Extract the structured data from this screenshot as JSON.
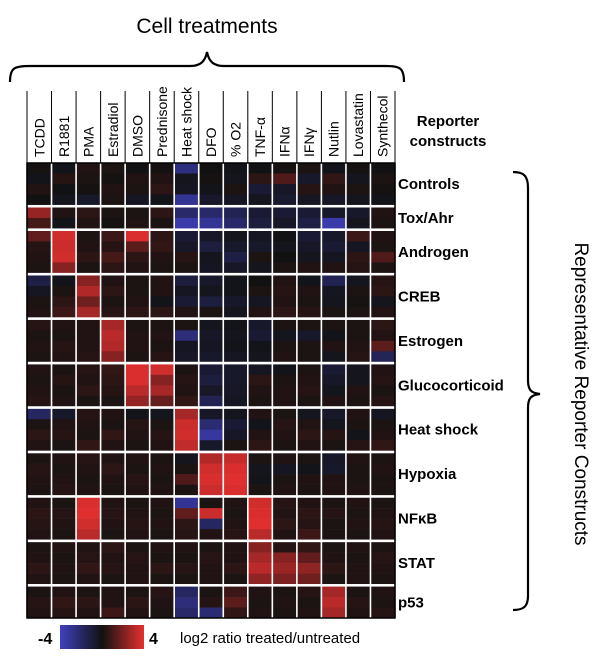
{
  "chart_data": {
    "type": "heatmap",
    "title": "Cell treatments",
    "column_header": "Cell treatments",
    "row_header": [
      "Reporter",
      "constructs"
    ],
    "side_label": "Representative Reporter Constructs",
    "columns": [
      "TCDD",
      "R1881",
      "PMA",
      "Estradiol",
      "DMSO",
      "Prednisone",
      "Heat shock",
      "DFO",
      "% O2",
      "TNF-α",
      "IFNα",
      "IFNγ",
      "Nutlin",
      "Lovastatin",
      "Synthecol"
    ],
    "groups": [
      {
        "name": "Controls",
        "rows": 4
      },
      {
        "name": "Tox/Ahr",
        "rows": 2
      },
      {
        "name": "Androgen",
        "rows": 4
      },
      {
        "name": "CREB",
        "rows": 4
      },
      {
        "name": "Estrogen",
        "rows": 4
      },
      {
        "name": "Glucocorticoid",
        "rows": 4
      },
      {
        "name": "Heat shock",
        "rows": 4
      },
      {
        "name": "Hypoxia",
        "rows": 4
      },
      {
        "name": "NFκB",
        "rows": 4
      },
      {
        "name": "STAT",
        "rows": 4
      },
      {
        "name": "p53",
        "rows": 3
      }
    ],
    "values": [
      [
        0.1,
        -0.2,
        0.3,
        0.2,
        -0.1,
        0.1,
        -2.5,
        0.0,
        -0.2,
        -0.1,
        0.1,
        0.2,
        -0.2,
        0.1,
        -0.1
      ],
      [
        -0.2,
        0.4,
        0.2,
        0.1,
        0.3,
        0.3,
        -0.3,
        0.1,
        -0.3,
        0.5,
        1.2,
        -0.6,
        0.6,
        -0.3,
        0.2
      ],
      [
        0.3,
        -0.1,
        0.1,
        0.3,
        0.2,
        0.5,
        -0.4,
        -0.2,
        0.2,
        -0.8,
        -0.5,
        0.4,
        0.3,
        0.2,
        0.1
      ],
      [
        0.0,
        -0.3,
        -0.6,
        0.2,
        -0.4,
        -0.2,
        -3.0,
        -0.6,
        -0.4,
        -0.3,
        -0.7,
        -0.4,
        -0.5,
        -0.3,
        -0.2
      ],
      [
        2.5,
        0.3,
        0.5,
        0.2,
        0.2,
        0.5,
        -2.0,
        -2.0,
        -1.5,
        -0.8,
        -0.8,
        -0.8,
        -0.6,
        -0.6,
        0.3
      ],
      [
        1.0,
        -0.2,
        0.3,
        0.1,
        0.3,
        0.2,
        -3.5,
        -3.0,
        -2.0,
        -1.0,
        -0.5,
        -1.2,
        -3.5,
        -0.3,
        0.2
      ],
      [
        1.5,
        3.6,
        0.2,
        0.8,
        3.8,
        0.5,
        -0.8,
        -0.5,
        -0.3,
        -0.4,
        -0.1,
        -0.8,
        -0.6,
        0.8,
        0.3
      ],
      [
        0.4,
        3.5,
        0.3,
        0.4,
        1.4,
        0.6,
        -0.5,
        -1.0,
        -0.6,
        -0.6,
        -0.3,
        -0.5,
        -0.8,
        -0.4,
        0.2
      ],
      [
        0.3,
        3.6,
        0.5,
        1.0,
        0.5,
        0.3,
        0.4,
        -0.3,
        -1.2,
        0.2,
        0.0,
        -0.3,
        -0.4,
        0.5,
        1.2
      ],
      [
        0.2,
        2.2,
        0.2,
        0.5,
        0.3,
        0.2,
        0.2,
        -0.4,
        -0.5,
        -0.3,
        0.2,
        0.3,
        0.3,
        0.4,
        0.2
      ],
      [
        -1.2,
        -0.2,
        2.2,
        0.3,
        0.2,
        0.3,
        -1.0,
        -0.6,
        -0.2,
        0.0,
        0.3,
        -0.2,
        -1.5,
        -0.3,
        0.4
      ],
      [
        -0.4,
        0.2,
        3.0,
        0.5,
        0.2,
        0.3,
        -0.4,
        -0.3,
        -0.2,
        0.2,
        0.4,
        0.3,
        -0.4,
        0.2,
        0.5
      ],
      [
        0.2,
        0.5,
        1.8,
        0.2,
        0.3,
        -0.2,
        -0.8,
        -1.0,
        -0.6,
        -0.4,
        0.3,
        0.2,
        -0.3,
        0.1,
        -0.3
      ],
      [
        0.3,
        0.8,
        2.8,
        0.4,
        0.5,
        0.5,
        0.3,
        0.2,
        -0.3,
        0.3,
        0.5,
        0.4,
        0.2,
        0.2,
        0.3
      ],
      [
        0.4,
        0.3,
        0.3,
        2.8,
        0.2,
        0.2,
        0.2,
        -0.3,
        -0.2,
        -0.6,
        0.2,
        0.2,
        0.2,
        0.2,
        0.5
      ],
      [
        0.2,
        0.2,
        0.3,
        3.2,
        0.3,
        0.3,
        -2.4,
        -0.5,
        -0.3,
        -0.8,
        -0.3,
        -0.6,
        -0.2,
        0.2,
        0.3
      ],
      [
        0.3,
        0.4,
        0.3,
        3.0,
        0.3,
        0.2,
        -0.4,
        -0.4,
        -0.2,
        -0.2,
        0.2,
        0.2,
        0.3,
        0.3,
        1.4
      ],
      [
        0.2,
        0.3,
        0.4,
        2.2,
        0.2,
        0.4,
        -0.5,
        -0.6,
        -0.4,
        -0.3,
        0.3,
        0.2,
        -0.3,
        0.4,
        -1.6
      ],
      [
        0.3,
        0.2,
        0.4,
        0.6,
        3.8,
        3.6,
        0.2,
        -0.8,
        -0.6,
        -0.4,
        -0.2,
        0.2,
        -0.8,
        -0.3,
        0.3
      ],
      [
        0.2,
        0.4,
        0.3,
        0.5,
        3.8,
        2.2,
        0.4,
        -1.0,
        -0.6,
        0.5,
        0.2,
        0.3,
        -0.5,
        -0.3,
        0.4
      ],
      [
        0.3,
        0.2,
        0.5,
        0.4,
        3.2,
        2.8,
        0.3,
        -0.5,
        -0.5,
        0.3,
        0.3,
        0.4,
        -0.3,
        0.3,
        0.2
      ],
      [
        0.4,
        0.3,
        0.2,
        0.2,
        2.5,
        1.6,
        0.6,
        -1.5,
        -0.4,
        0.2,
        0.3,
        0.2,
        0.3,
        0.2,
        0.4
      ],
      [
        -1.8,
        -0.6,
        0.4,
        0.3,
        -0.2,
        -0.3,
        2.8,
        -0.5,
        -0.3,
        0.3,
        0.2,
        -0.3,
        -0.6,
        0.3,
        -0.4
      ],
      [
        0.2,
        0.3,
        0.3,
        0.2,
        0.4,
        0.2,
        3.5,
        -2.2,
        -0.8,
        -0.2,
        0.4,
        0.3,
        -0.3,
        0.2,
        0.2
      ],
      [
        0.5,
        0.4,
        0.2,
        0.6,
        0.3,
        0.4,
        3.6,
        -3.2,
        -0.5,
        0.3,
        0.3,
        0.5,
        0.4,
        -0.2,
        0.3
      ],
      [
        0.3,
        0.2,
        0.6,
        0.3,
        0.2,
        0.3,
        3.3,
        -0.6,
        0.2,
        0.5,
        0.2,
        0.3,
        0.2,
        0.4,
        0.6
      ],
      [
        0.2,
        0.3,
        0.4,
        0.3,
        0.3,
        0.2,
        -0.3,
        3.0,
        3.4,
        0.2,
        0.3,
        0.2,
        -0.5,
        0.3,
        0.2
      ],
      [
        0.4,
        0.2,
        0.3,
        0.5,
        0.2,
        0.3,
        0.2,
        3.6,
        3.8,
        -0.3,
        -0.4,
        -0.2,
        -0.6,
        0.2,
        0.3
      ],
      [
        0.3,
        0.3,
        0.2,
        0.3,
        0.4,
        0.2,
        1.2,
        3.8,
        3.9,
        -0.2,
        0.2,
        0.3,
        0.3,
        0.2,
        0.2
      ],
      [
        0.2,
        0.4,
        0.3,
        0.2,
        0.3,
        0.3,
        0.2,
        3.5,
        3.8,
        0.2,
        0.3,
        0.2,
        0.3,
        0.3,
        0.2
      ],
      [
        0.3,
        0.2,
        3.8,
        0.3,
        0.2,
        0.3,
        -3.0,
        0.2,
        0.3,
        3.6,
        0.4,
        0.3,
        0.2,
        0.3,
        0.2
      ],
      [
        0.5,
        0.4,
        3.9,
        0.4,
        0.3,
        0.2,
        1.5,
        3.5,
        0.2,
        3.8,
        0.3,
        0.5,
        0.4,
        0.2,
        0.3
      ],
      [
        0.4,
        0.3,
        3.6,
        0.3,
        0.4,
        0.3,
        0.5,
        -1.8,
        0.3,
        3.9,
        0.5,
        0.4,
        0.2,
        0.3,
        0.4
      ],
      [
        0.3,
        0.2,
        3.2,
        0.2,
        0.3,
        0.2,
        0.4,
        0.3,
        0.4,
        3.2,
        0.3,
        0.8,
        0.2,
        0.2,
        0.3
      ],
      [
        0.2,
        0.3,
        0.3,
        0.5,
        0.2,
        0.3,
        0.3,
        0.2,
        0.3,
        2.2,
        0.4,
        0.6,
        0.2,
        0.3,
        0.2
      ],
      [
        0.3,
        0.2,
        0.4,
        0.3,
        0.4,
        0.2,
        0.2,
        0.4,
        0.3,
        2.8,
        2.2,
        1.5,
        0.3,
        0.2,
        0.4
      ],
      [
        0.5,
        0.3,
        0.6,
        0.4,
        0.3,
        0.5,
        0.4,
        0.3,
        0.5,
        3.2,
        2.6,
        2.4,
        0.5,
        0.3,
        0.3
      ],
      [
        0.3,
        0.2,
        0.3,
        0.2,
        0.3,
        0.2,
        0.2,
        0.3,
        0.2,
        2.4,
        2.0,
        1.8,
        0.2,
        0.3,
        0.2
      ],
      [
        0.2,
        0.3,
        0.2,
        0.3,
        0.2,
        0.4,
        -1.8,
        0.2,
        0.8,
        0.3,
        0.2,
        0.4,
        2.8,
        0.2,
        0.3
      ],
      [
        0.4,
        0.6,
        0.5,
        0.3,
        0.5,
        0.3,
        -2.4,
        0.4,
        1.4,
        0.2,
        0.3,
        0.2,
        3.2,
        0.4,
        0.2
      ],
      [
        0.3,
        0.4,
        0.3,
        0.8,
        0.3,
        0.2,
        -2.0,
        -2.2,
        0.6,
        0.3,
        0.2,
        0.3,
        2.8,
        0.3,
        0.4
      ]
    ],
    "legend": {
      "min": -4,
      "max": 4,
      "label": "log2 ratio treated/untreated",
      "colors": [
        "#4040c0",
        "#111111",
        "#e53030"
      ]
    }
  }
}
